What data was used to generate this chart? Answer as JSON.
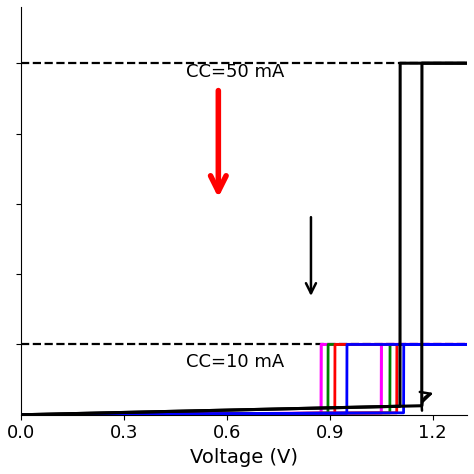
{
  "title": "",
  "xlabel": "Voltage (V)",
  "ylabel": "",
  "xlim": [
    0,
    1.3
  ],
  "ylim": [
    0,
    58
  ],
  "cc_50_level": 50,
  "cc_10_level": 10,
  "background_color": "#ffffff",
  "xlabel_fontsize": 14,
  "tick_fontsize": 13,
  "colors": [
    "magenta",
    "green",
    "red",
    "blue"
  ],
  "v_sets": [
    0.875,
    0.895,
    0.915,
    0.95
  ],
  "v_resets": [
    1.05,
    1.075,
    1.095,
    1.115
  ],
  "v_set_black": 1.105,
  "v_reset_black": 1.168,
  "pre_slope_colored": 0.25,
  "pre_slope_black": 1.1
}
